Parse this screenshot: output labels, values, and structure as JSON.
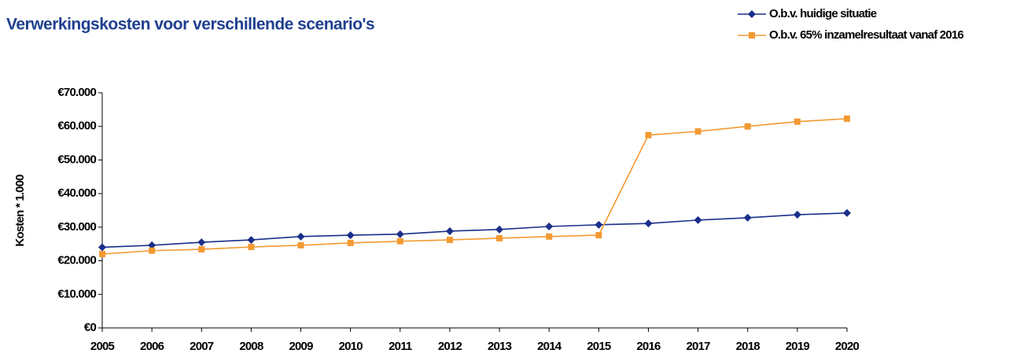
{
  "chart_data": {
    "type": "line",
    "title": "Verwerkingskosten voor verschillende scenario's",
    "y_label": "Kosten * 1.000",
    "categories": [
      "2005",
      "2006",
      "2007",
      "2008",
      "2009",
      "2010",
      "2011",
      "2012",
      "2013",
      "2014",
      "2015",
      "2016",
      "2017",
      "2018",
      "2019",
      "2020"
    ],
    "series": [
      {
        "name": "O.b.v. huidige situatie",
        "color": "#1a2f8a",
        "marker": "diamond",
        "values": [
          24000,
          24600,
          25500,
          26200,
          27200,
          27600,
          27900,
          28800,
          29300,
          30200,
          30700,
          31100,
          32100,
          32800,
          33700,
          34200
        ]
      },
      {
        "name": "O.b.v. 65% inzamelresultaat vanaf 2016",
        "color": "#f39a32",
        "marker": "square",
        "values": [
          22000,
          23000,
          23400,
          24100,
          24600,
          25300,
          25800,
          26200,
          26700,
          27200,
          27600,
          57400,
          58500,
          60000,
          61400,
          62300
        ]
      }
    ],
    "ylim": [
      0,
      70000
    ],
    "yticks": [
      {
        "value": 0,
        "label": "€0"
      },
      {
        "value": 10000,
        "label": "€10.000"
      },
      {
        "value": 20000,
        "label": "€20.000"
      },
      {
        "value": 30000,
        "label": "€30.000"
      },
      {
        "value": 40000,
        "label": "€40.000"
      },
      {
        "value": 50000,
        "label": "€50.000"
      },
      {
        "value": 60000,
        "label": "€60.000"
      },
      {
        "value": 70000,
        "label": "€70.000"
      }
    ],
    "legend": "top-right",
    "grid": false
  }
}
